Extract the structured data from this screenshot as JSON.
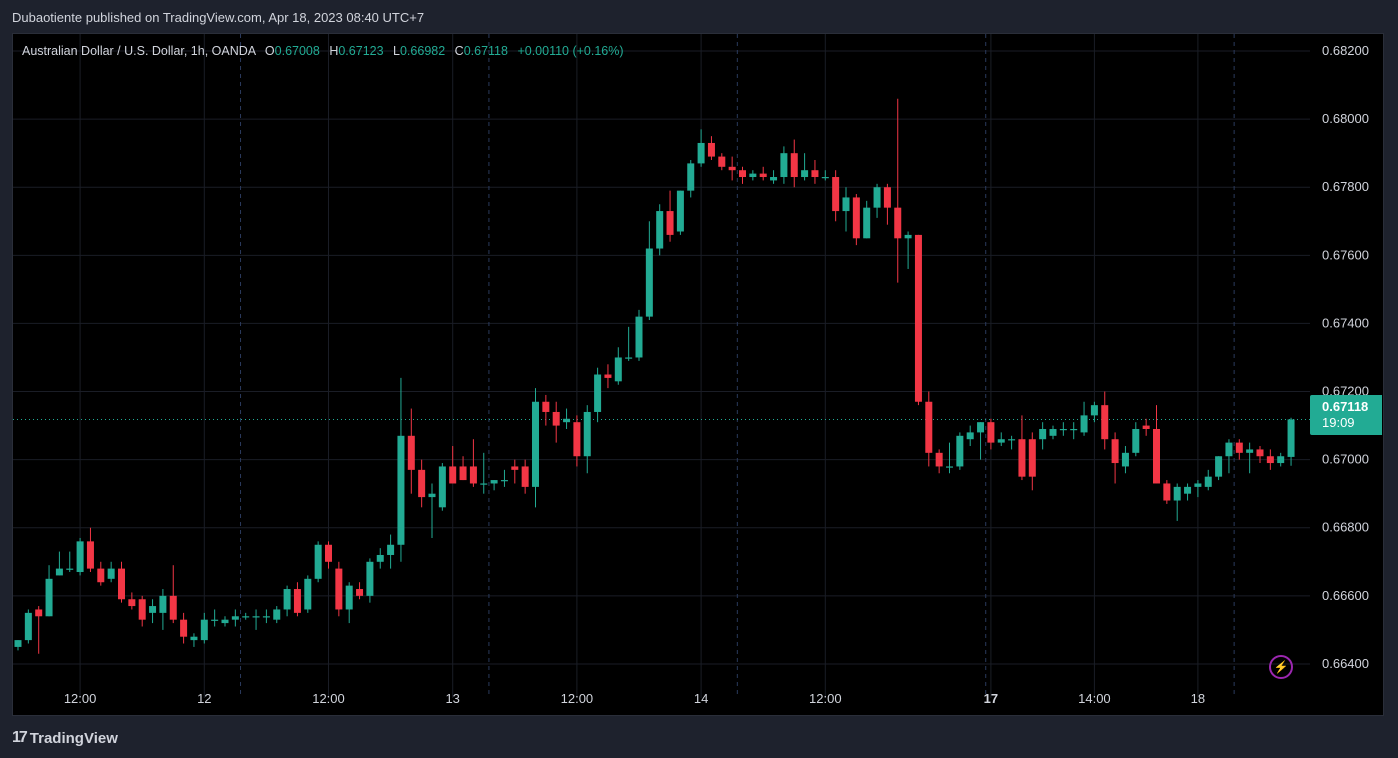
{
  "header": {
    "text": "Dubaotiente published on TradingView.com, Apr 18, 2023 08:40 UTC+7"
  },
  "legend": {
    "symbol": "Australian Dollar / U.S. Dollar, 1h, OANDA",
    "open_label": "O",
    "open": "0.67008",
    "high_label": "H",
    "high": "0.67123",
    "low_label": "L",
    "low": "0.66982",
    "close_label": "C",
    "close": "0.67118",
    "change": "+0.00110 (+0.16%)"
  },
  "last_price": {
    "value": "0.67118",
    "timer": "19:09"
  },
  "footer": {
    "brand": "TradingView",
    "logo_glyph": "17"
  },
  "colors": {
    "up": "#22ab94",
    "down": "#f23645",
    "background": "#000000",
    "grid": "#1a1d26"
  },
  "icons": {
    "alert": "lightning-icon",
    "logo": "tradingview-logo-icon"
  },
  "chart_data": {
    "type": "candlestick",
    "interval": "1h",
    "ylim": [
      0.663,
      0.6825
    ],
    "y_ticks": [
      "0.66400",
      "0.66600",
      "0.66800",
      "0.67000",
      "0.67200",
      "0.67400",
      "0.67600",
      "0.67800",
      "0.68000",
      "0.68200"
    ],
    "x_ticks": [
      {
        "index": 6,
        "label": "12:00",
        "bold": false
      },
      {
        "index": 18,
        "label": "12",
        "bold": false
      },
      {
        "index": 30,
        "label": "12:00",
        "bold": false
      },
      {
        "index": 42,
        "label": "13",
        "bold": false
      },
      {
        "index": 54,
        "label": "12:00",
        "bold": false
      },
      {
        "index": 66,
        "label": "14",
        "bold": false
      },
      {
        "index": 78,
        "label": "12:00",
        "bold": false
      },
      {
        "index": 94,
        "label": "17",
        "bold": true
      },
      {
        "index": 104,
        "label": "14:00",
        "bold": false
      },
      {
        "index": 114,
        "label": "18",
        "bold": false
      }
    ],
    "session_separators": [
      21.5,
      45.5,
      69.5,
      93.5,
      117.5
    ],
    "last_price": 0.67118,
    "candles": [
      [
        0.6645,
        0.6647,
        0.6644,
        0.6647
      ],
      [
        0.6647,
        0.6656,
        0.6646,
        0.6655
      ],
      [
        0.6656,
        0.6657,
        0.6643,
        0.6654
      ],
      [
        0.6654,
        0.6669,
        0.6654,
        0.6665
      ],
      [
        0.6666,
        0.6673,
        0.6666,
        0.6668
      ],
      [
        0.6668,
        0.6673,
        0.6667,
        0.6668
      ],
      [
        0.6667,
        0.6677,
        0.6666,
        0.6676
      ],
      [
        0.6676,
        0.668,
        0.6667,
        0.6668
      ],
      [
        0.6668,
        0.667,
        0.6663,
        0.6664
      ],
      [
        0.6665,
        0.667,
        0.6664,
        0.6668
      ],
      [
        0.6668,
        0.667,
        0.6658,
        0.6659
      ],
      [
        0.6659,
        0.6661,
        0.6656,
        0.6657
      ],
      [
        0.6659,
        0.666,
        0.6651,
        0.6653
      ],
      [
        0.6655,
        0.6659,
        0.6652,
        0.6657
      ],
      [
        0.6655,
        0.6662,
        0.665,
        0.666
      ],
      [
        0.666,
        0.6669,
        0.6652,
        0.6653
      ],
      [
        0.6653,
        0.6655,
        0.6646,
        0.6648
      ],
      [
        0.6647,
        0.6649,
        0.6645,
        0.6648
      ],
      [
        0.6647,
        0.6655,
        0.6646,
        0.6653
      ],
      [
        0.6653,
        0.6656,
        0.6651,
        0.6653
      ],
      [
        0.6652,
        0.6654,
        0.6651,
        0.6653
      ],
      [
        0.6653,
        0.6656,
        0.6651,
        0.6654
      ],
      [
        0.6654,
        0.6655,
        0.6653,
        0.6654
      ],
      [
        0.6654,
        0.6656,
        0.665,
        0.6654
      ],
      [
        0.6654,
        0.6656,
        0.6652,
        0.6654
      ],
      [
        0.6653,
        0.6657,
        0.6652,
        0.6656
      ],
      [
        0.6656,
        0.6663,
        0.6654,
        0.6662
      ],
      [
        0.6662,
        0.6664,
        0.6654,
        0.6655
      ],
      [
        0.6656,
        0.6666,
        0.6655,
        0.6665
      ],
      [
        0.6665,
        0.6676,
        0.6664,
        0.6675
      ],
      [
        0.6675,
        0.6676,
        0.6668,
        0.667
      ],
      [
        0.6668,
        0.667,
        0.6654,
        0.6656
      ],
      [
        0.6656,
        0.6664,
        0.6652,
        0.6663
      ],
      [
        0.6662,
        0.6664,
        0.6659,
        0.666
      ],
      [
        0.666,
        0.6671,
        0.6658,
        0.667
      ],
      [
        0.667,
        0.6674,
        0.6668,
        0.6672
      ],
      [
        0.6672,
        0.6678,
        0.6668,
        0.6675
      ],
      [
        0.6675,
        0.6724,
        0.667,
        0.6707
      ],
      [
        0.6707,
        0.6715,
        0.669,
        0.6697
      ],
      [
        0.6697,
        0.67,
        0.6686,
        0.6689
      ],
      [
        0.6689,
        0.6693,
        0.6677,
        0.669
      ],
      [
        0.6686,
        0.6699,
        0.6685,
        0.6698
      ],
      [
        0.6698,
        0.6704,
        0.6693,
        0.6693
      ],
      [
        0.6698,
        0.6701,
        0.6694,
        0.6694
      ],
      [
        0.6698,
        0.6706,
        0.6692,
        0.6693
      ],
      [
        0.6693,
        0.6702,
        0.669,
        0.6693
      ],
      [
        0.6693,
        0.6694,
        0.6691,
        0.6694
      ],
      [
        0.6694,
        0.6697,
        0.6692,
        0.6694
      ],
      [
        0.6698,
        0.67,
        0.6693,
        0.6697
      ],
      [
        0.6698,
        0.67,
        0.669,
        0.6692
      ],
      [
        0.6692,
        0.6721,
        0.6686,
        0.6717
      ],
      [
        0.6717,
        0.6719,
        0.671,
        0.6714
      ],
      [
        0.6714,
        0.6717,
        0.6705,
        0.671
      ],
      [
        0.6711,
        0.6715,
        0.6709,
        0.6712
      ],
      [
        0.6711,
        0.6713,
        0.6698,
        0.6701
      ],
      [
        0.6701,
        0.6716,
        0.6696,
        0.6714
      ],
      [
        0.6714,
        0.6727,
        0.6711,
        0.6725
      ],
      [
        0.6725,
        0.6728,
        0.6721,
        0.6724
      ],
      [
        0.6723,
        0.6733,
        0.6722,
        0.673
      ],
      [
        0.673,
        0.6739,
        0.6729,
        0.673
      ],
      [
        0.673,
        0.6744,
        0.6729,
        0.6742
      ],
      [
        0.6742,
        0.677,
        0.6741,
        0.6762
      ],
      [
        0.6762,
        0.6775,
        0.676,
        0.6773
      ],
      [
        0.6773,
        0.6779,
        0.6764,
        0.6766
      ],
      [
        0.6767,
        0.6779,
        0.6766,
        0.6779
      ],
      [
        0.6779,
        0.6788,
        0.6777,
        0.6787
      ],
      [
        0.6787,
        0.6797,
        0.6786,
        0.6793
      ],
      [
        0.6793,
        0.6795,
        0.6788,
        0.6789
      ],
      [
        0.6789,
        0.679,
        0.6785,
        0.6786
      ],
      [
        0.6786,
        0.6789,
        0.6782,
        0.6785
      ],
      [
        0.6785,
        0.6786,
        0.6781,
        0.6783
      ],
      [
        0.6783,
        0.6785,
        0.6782,
        0.6784
      ],
      [
        0.6784,
        0.6786,
        0.6782,
        0.6783
      ],
      [
        0.6782,
        0.6785,
        0.6781,
        0.6783
      ],
      [
        0.6783,
        0.6792,
        0.6781,
        0.679
      ],
      [
        0.679,
        0.6794,
        0.678,
        0.6783
      ],
      [
        0.6783,
        0.679,
        0.6782,
        0.6785
      ],
      [
        0.6785,
        0.6788,
        0.6781,
        0.6783
      ],
      [
        0.6783,
        0.6785,
        0.6782,
        0.6783
      ],
      [
        0.6783,
        0.6785,
        0.677,
        0.6773
      ],
      [
        0.6773,
        0.678,
        0.6767,
        0.6777
      ],
      [
        0.6777,
        0.6778,
        0.6763,
        0.6765
      ],
      [
        0.6765,
        0.6776,
        0.6765,
        0.6774
      ],
      [
        0.6774,
        0.6781,
        0.6771,
        0.678
      ],
      [
        0.678,
        0.6781,
        0.6769,
        0.6774
      ],
      [
        0.6774,
        0.6806,
        0.6752,
        0.6765
      ],
      [
        0.6765,
        0.6767,
        0.6756,
        0.6766
      ],
      [
        0.6766,
        0.6766,
        0.6716,
        0.6717
      ],
      [
        0.6717,
        0.672,
        0.6698,
        0.6702
      ],
      [
        0.6702,
        0.6703,
        0.6696,
        0.6698
      ],
      [
        0.6698,
        0.6705,
        0.6696,
        0.6698
      ],
      [
        0.6698,
        0.6708,
        0.6697,
        0.6707
      ],
      [
        0.6706,
        0.671,
        0.6704,
        0.6708
      ],
      [
        0.6708,
        0.6711,
        0.67,
        0.6711
      ],
      [
        0.6711,
        0.6712,
        0.6703,
        0.6705
      ],
      [
        0.6705,
        0.6708,
        0.6704,
        0.6706
      ],
      [
        0.6706,
        0.6707,
        0.6703,
        0.6706
      ],
      [
        0.6706,
        0.6713,
        0.6694,
        0.6695
      ],
      [
        0.6706,
        0.6708,
        0.6691,
        0.6695
      ],
      [
        0.6706,
        0.6711,
        0.6703,
        0.6709
      ],
      [
        0.6707,
        0.671,
        0.6706,
        0.6709
      ],
      [
        0.6709,
        0.6711,
        0.6707,
        0.6709
      ],
      [
        0.6709,
        0.6711,
        0.6706,
        0.6709
      ],
      [
        0.6708,
        0.6717,
        0.6707,
        0.6713
      ],
      [
        0.6713,
        0.6717,
        0.6711,
        0.6716
      ],
      [
        0.6716,
        0.672,
        0.6703,
        0.6706
      ],
      [
        0.6706,
        0.6708,
        0.6693,
        0.6699
      ],
      [
        0.6698,
        0.6704,
        0.6696,
        0.6702
      ],
      [
        0.6702,
        0.6711,
        0.6701,
        0.6709
      ],
      [
        0.671,
        0.6712,
        0.6707,
        0.6709
      ],
      [
        0.6709,
        0.6716,
        0.6693,
        0.6693
      ],
      [
        0.6693,
        0.6694,
        0.6687,
        0.6688
      ],
      [
        0.6688,
        0.6693,
        0.6682,
        0.6692
      ],
      [
        0.669,
        0.6693,
        0.6688,
        0.6692
      ],
      [
        0.6692,
        0.6694,
        0.6689,
        0.6693
      ],
      [
        0.6692,
        0.6697,
        0.6691,
        0.6695
      ],
      [
        0.6695,
        0.6701,
        0.6694,
        0.6701
      ],
      [
        0.6701,
        0.6706,
        0.6696,
        0.6705
      ],
      [
        0.6705,
        0.6706,
        0.67,
        0.6702
      ],
      [
        0.6702,
        0.6705,
        0.6696,
        0.6703
      ],
      [
        0.6703,
        0.6704,
        0.6699,
        0.6701
      ],
      [
        0.6701,
        0.6703,
        0.6697,
        0.6699
      ],
      [
        0.6699,
        0.6702,
        0.6698,
        0.6701
      ],
      [
        0.67008,
        0.67123,
        0.66982,
        0.67118
      ]
    ]
  }
}
